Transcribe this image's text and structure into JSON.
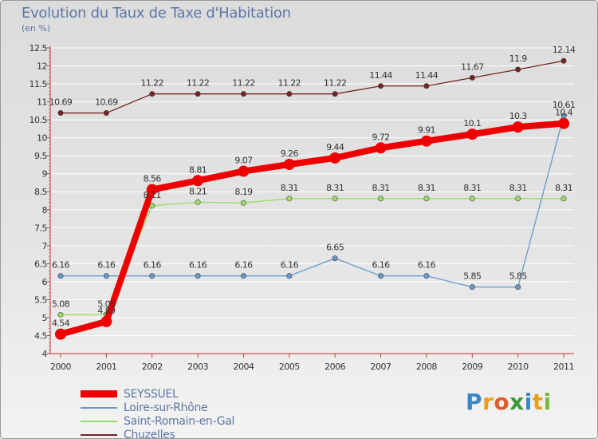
{
  "title": "Evolution du Taux de Taxe d'Habitation",
  "subtitle": "(en %)",
  "colors": {
    "text": "#5d76a6",
    "axis": "#d23030",
    "grid": "#ffffff"
  },
  "brand": {
    "letters": [
      "P",
      "r",
      "o",
      "x",
      "i",
      "t",
      "i"
    ],
    "colors": [
      "#3a86c8",
      "#e8a020",
      "#e05a2a",
      "#3a9a3a",
      "#3a86c8",
      "#e8a020",
      "#7ab83a"
    ]
  },
  "chart_data": {
    "type": "line",
    "categories": [
      "2000",
      "2001",
      "2002",
      "2003",
      "2004",
      "2005",
      "2006",
      "2007",
      "2008",
      "2009",
      "2010",
      "2011"
    ],
    "ylim": [
      4,
      12.5
    ],
    "yticks": [
      4,
      4.5,
      5,
      5.5,
      6,
      6.5,
      7,
      7.5,
      8,
      8.5,
      9,
      9.5,
      10,
      10.5,
      11,
      11.5,
      12,
      12.5
    ],
    "ytick_labels": [
      "4",
      "4.5",
      "5",
      "5.5",
      "6",
      "6.5",
      "7",
      "7.5",
      "8",
      "8.5",
      "9",
      "9.5",
      "10",
      "10.5",
      "11",
      "11.5",
      "12",
      "12.5"
    ],
    "grid": true,
    "legend_placement": "bottom-left",
    "series": [
      {
        "name": "SEYSSUEL",
        "color": "#ee0000",
        "values": [
          4.54,
          4.89,
          8.56,
          8.81,
          9.07,
          9.26,
          9.44,
          9.72,
          9.91,
          10.1,
          10.3,
          10.4
        ],
        "labels": [
          "4.54",
          "4.89",
          "8.56",
          "8.81",
          "9.07",
          "9.26",
          "9.44",
          "9.72",
          "9.91",
          "10.1",
          "10.3",
          "10.4"
        ]
      },
      {
        "name": "Loire-sur-Rhône",
        "color": "#6699cc",
        "values": [
          6.16,
          6.16,
          6.16,
          6.16,
          6.16,
          6.16,
          6.65,
          6.16,
          6.16,
          5.85,
          5.85,
          10.61
        ],
        "labels": [
          "6.16",
          "6.16",
          "6.16",
          "6.16",
          "6.16",
          "6.16",
          "6.65",
          "6.16",
          "6.16",
          "5.85",
          "5.85",
          "10.61"
        ]
      },
      {
        "name": "Saint-Romain-en-Gal",
        "color": "#99dd66",
        "values": [
          5.08,
          5.08,
          8.11,
          8.21,
          8.19,
          8.31,
          8.31,
          8.31,
          8.31,
          8.31,
          8.31,
          8.31
        ],
        "labels": [
          "5.08",
          "5.08",
          "8.11",
          "8.21",
          "8.19",
          "8.31",
          "8.31",
          "8.31",
          "8.31",
          "8.31",
          "8.31",
          "8.31"
        ]
      },
      {
        "name": "Chuzelles",
        "color": "#772222",
        "values": [
          10.69,
          10.69,
          11.22,
          11.22,
          11.22,
          11.22,
          11.22,
          11.44,
          11.44,
          11.67,
          11.9,
          12.14
        ],
        "labels": [
          "10.69",
          "10.69",
          "11.22",
          "11.22",
          "11.22",
          "11.22",
          "11.22",
          "11.44",
          "11.44",
          "11.67",
          "11.9",
          "12.14"
        ]
      }
    ]
  }
}
